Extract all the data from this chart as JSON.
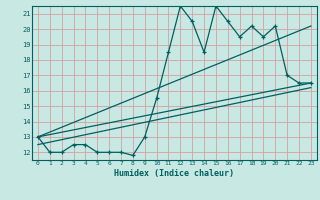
{
  "xlabel": "Humidex (Indice chaleur)",
  "bg_color": "#c8e8e4",
  "grid_color": "#d4a0a0",
  "line_color": "#006060",
  "xlim": [
    -0.5,
    23.5
  ],
  "ylim": [
    11.5,
    21.5
  ],
  "xticks": [
    0,
    1,
    2,
    3,
    4,
    5,
    6,
    7,
    8,
    9,
    10,
    11,
    12,
    13,
    14,
    15,
    16,
    17,
    18,
    19,
    20,
    21,
    22,
    23
  ],
  "yticks": [
    12,
    13,
    14,
    15,
    16,
    17,
    18,
    19,
    20,
    21
  ],
  "main_x": [
    0,
    1,
    2,
    3,
    4,
    5,
    6,
    7,
    8,
    9,
    10,
    11,
    12,
    13,
    14,
    15,
    16,
    17,
    18,
    19,
    20,
    21,
    22,
    23
  ],
  "main_y": [
    13,
    12,
    12,
    12.5,
    12.5,
    12,
    12,
    12,
    11.8,
    13,
    15.5,
    18.5,
    21.5,
    20.5,
    18.5,
    21.5,
    20.5,
    19.5,
    20.2,
    19.5,
    20.2,
    17,
    16.5,
    16.5
  ],
  "line1_x": [
    0,
    23
  ],
  "line1_y": [
    13.0,
    16.5
  ],
  "line2_x": [
    0,
    23
  ],
  "line2_y": [
    13.0,
    20.2
  ],
  "line3_x": [
    0,
    23
  ],
  "line3_y": [
    12.5,
    16.2
  ]
}
